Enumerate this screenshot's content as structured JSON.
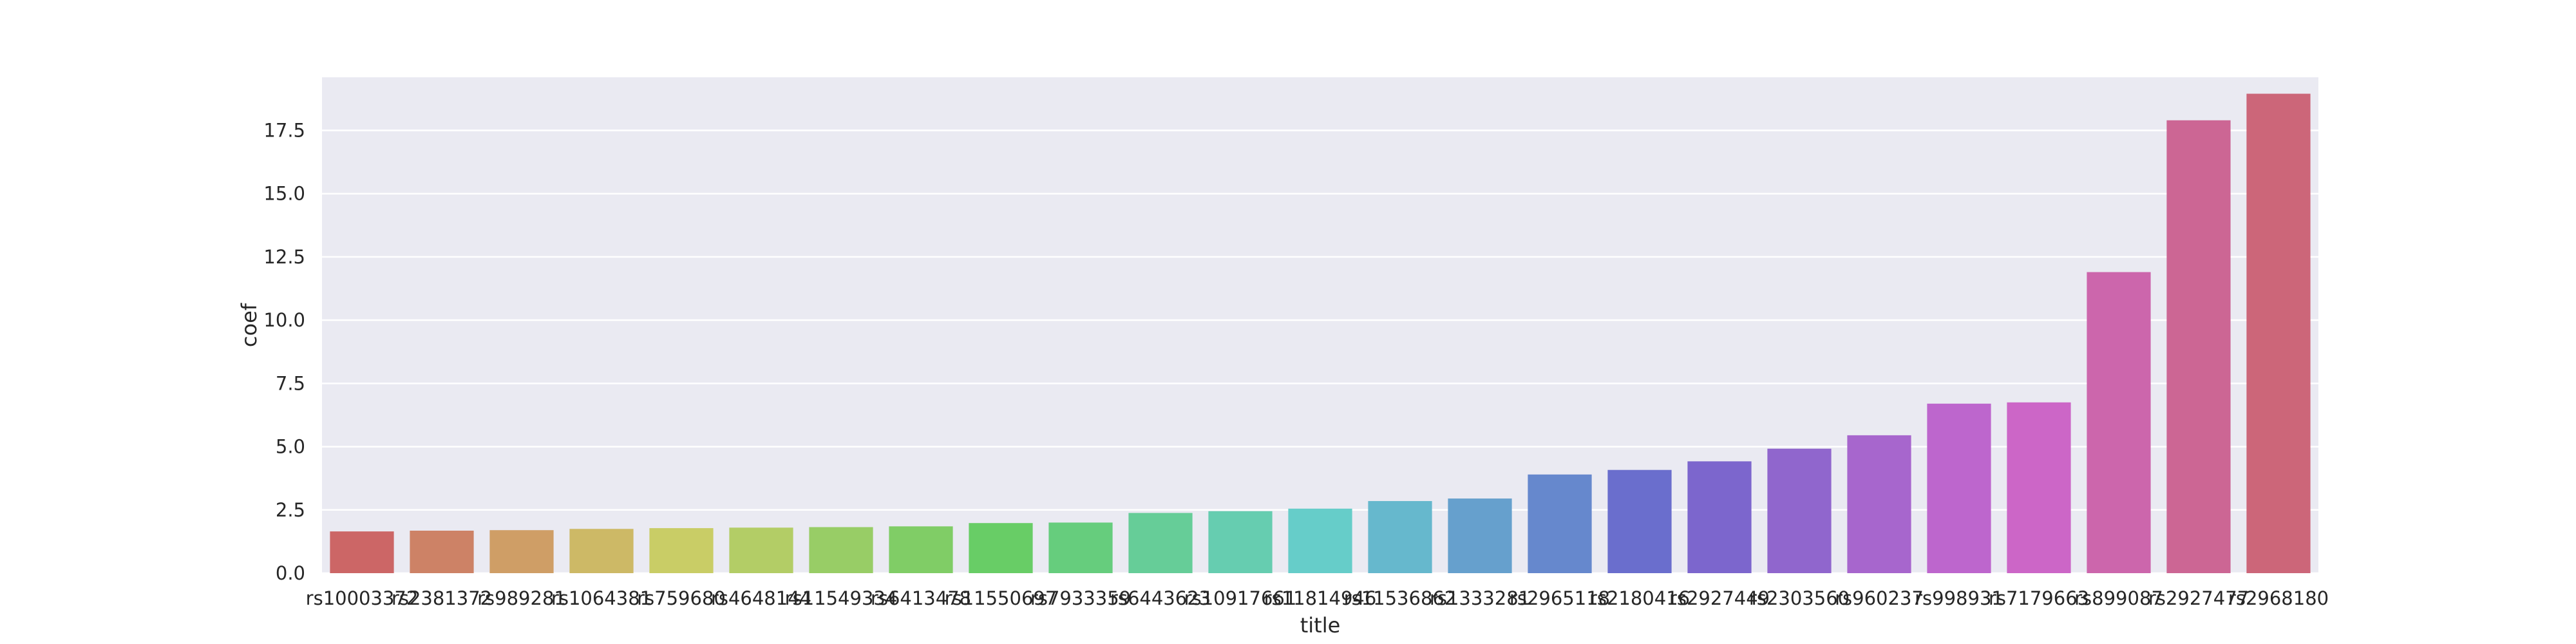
{
  "chart_data": {
    "type": "bar",
    "xlabel": "title",
    "ylabel": "coef",
    "ylim": [
      0,
      19.6
    ],
    "yticks": [
      "0.0",
      "2.5",
      "5.0",
      "7.5",
      "10.0",
      "12.5",
      "15.0",
      "17.5"
    ],
    "grid": true,
    "background": "#eaeaf2",
    "categories": [
      "rs10003372",
      "rs2381372",
      "rs989281",
      "rs1064381",
      "rs759680",
      "rs4648144",
      "rs11549334",
      "rs6413478",
      "rs11550697",
      "rs7933359",
      "rs6443623",
      "rs10917661",
      "rs11814946",
      "rs11536862",
      "rs1333281",
      "rs2965118",
      "rs2180416",
      "rs2927449",
      "rs2303560",
      "rs960237",
      "rs998931",
      "rs7179663",
      "rs899087",
      "rs2927477",
      "rs2968180"
    ],
    "values": [
      1.65,
      1.68,
      1.7,
      1.75,
      1.78,
      1.8,
      1.82,
      1.85,
      1.98,
      2.0,
      2.38,
      2.45,
      2.55,
      2.85,
      2.95,
      3.9,
      4.08,
      4.42,
      4.92,
      5.45,
      6.7,
      6.75,
      11.9,
      17.9,
      18.95
    ],
    "colors": [
      "#cc6666",
      "#cd8266",
      "#cf9e66",
      "#cdb966",
      "#c9cd66",
      "#b3cd66",
      "#98cd66",
      "#80cd66",
      "#68cd66",
      "#66cd7d",
      "#66cd98",
      "#66cdb0",
      "#66cdc9",
      "#66b8cd",
      "#66a0cd",
      "#6688cd",
      "#6a6ecd",
      "#7c66cd",
      "#9066cd",
      "#a766cd",
      "#bd66cd",
      "#cc66c7",
      "#cc66ac",
      "#cc6694",
      "#cc6679"
    ]
  }
}
